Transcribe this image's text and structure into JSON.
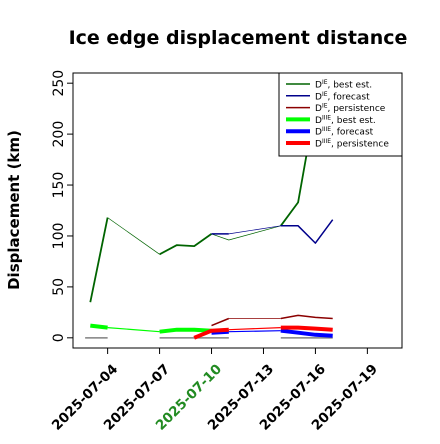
{
  "chart_data": {
    "type": "line",
    "title": "Ice edge displacement distance",
    "xlabel": "",
    "ylabel": "Displacement (km)",
    "xlim": [
      "2025-07-02",
      "2025-07-21"
    ],
    "ylim": [
      -10,
      260
    ],
    "yticks": [
      0,
      50,
      100,
      150,
      200,
      250
    ],
    "ytick_labels": [
      "0",
      "50",
      "100",
      "150",
      "200",
      "250"
    ],
    "xticks": [
      "2025-07-04",
      "2025-07-07",
      "2025-07-10",
      "2025-07-13",
      "2025-07-16",
      "2025-07-19"
    ],
    "xtick_labels": [
      "2025-07-04",
      "2025-07-07",
      "2025-07-10",
      "2025-07-13",
      "2025-07-16",
      "2025-07-19"
    ],
    "highlight_tick": "2025-07-10",
    "highlight_color": "#228b22",
    "grid": false,
    "legend_position": "top-right",
    "series": [
      {
        "name": "D^IE, best est.",
        "legend_main": "D",
        "legend_sup": "IE",
        "legend_rest": ", best est.",
        "color": "#006400",
        "legend_width": 1.5,
        "segments": [
          {
            "x": [
              "2025-07-03",
              "2025-07-04"
            ],
            "y": [
              35,
              118
            ],
            "width": 1.8
          },
          {
            "x": [
              "2025-07-04",
              "2025-07-07"
            ],
            "y": [
              118,
              82
            ],
            "width": 0.7
          },
          {
            "x": [
              "2025-07-07",
              "2025-07-08",
              "2025-07-09",
              "2025-07-10"
            ],
            "y": [
              82,
              91,
              90,
              102
            ],
            "width": 1.8
          },
          {
            "x": [
              "2025-07-10",
              "2025-07-11",
              "2025-07-14"
            ],
            "y": [
              102,
              96,
              110
            ],
            "width": 0.7
          },
          {
            "x": [
              "2025-07-14",
              "2025-07-15",
              "2025-07-15.7"
            ],
            "y": [
              110,
              133,
              200
            ],
            "width": 1.8
          }
        ]
      },
      {
        "name": "D^IE, forecast",
        "legend_main": "D",
        "legend_sup": "IE",
        "legend_rest": ", forecast",
        "color": "#00008b",
        "legend_width": 1.5,
        "segments": [
          {
            "x": [
              "2025-07-10",
              "2025-07-11"
            ],
            "y": [
              102,
              102
            ],
            "width": 1.5
          },
          {
            "x": [
              "2025-07-11",
              "2025-07-14"
            ],
            "y": [
              102,
              110
            ],
            "width": 0.7
          },
          {
            "x": [
              "2025-07-14",
              "2025-07-15",
              "2025-07-16",
              "2025-07-17"
            ],
            "y": [
              110,
              110,
              93,
              116
            ],
            "width": 1.5
          }
        ]
      },
      {
        "name": "D^IE, persistence",
        "legend_main": "D",
        "legend_sup": "IE",
        "legend_rest": ", persistence",
        "color": "#8b0000",
        "legend_width": 1.5,
        "segments": [
          {
            "x": [
              "2025-07-10",
              "2025-07-11"
            ],
            "y": [
              12,
              19
            ],
            "width": 1.5
          },
          {
            "x": [
              "2025-07-11",
              "2025-07-14"
            ],
            "y": [
              19,
              19
            ],
            "width": 0.7
          },
          {
            "x": [
              "2025-07-14",
              "2025-07-15",
              "2025-07-16",
              "2025-07-17"
            ],
            "y": [
              19,
              22,
              20,
              19
            ],
            "width": 1.5
          }
        ]
      },
      {
        "name": "D^IIIE, best est.",
        "legend_main": "D",
        "legend_sup": "IIIE",
        "legend_rest": ", best est.",
        "color": "#00ff00",
        "legend_width": 4,
        "segments": [
          {
            "x": [
              "2025-07-03",
              "2025-07-04"
            ],
            "y": [
              12,
              10
            ],
            "width": 4
          },
          {
            "x": [
              "2025-07-04",
              "2025-07-07"
            ],
            "y": [
              10,
              6
            ],
            "width": 1.2
          },
          {
            "x": [
              "2025-07-07",
              "2025-07-08",
              "2025-07-09",
              "2025-07-10"
            ],
            "y": [
              6,
              8,
              8,
              7
            ],
            "width": 4
          },
          {
            "x": [
              "2025-07-10",
              "2025-07-11"
            ],
            "y": [
              7,
              7
            ],
            "width": 1.2
          }
        ]
      },
      {
        "name": "D^IIIE, forecast",
        "legend_main": "D",
        "legend_sup": "IIIE",
        "legend_rest": ", forecast",
        "color": "#0000ff",
        "legend_width": 4,
        "segments": [
          {
            "x": [
              "2025-07-10",
              "2025-07-11"
            ],
            "y": [
              5,
              6
            ],
            "width": 4
          },
          {
            "x": [
              "2025-07-11",
              "2025-07-14"
            ],
            "y": [
              6,
              7
            ],
            "width": 1.2
          },
          {
            "x": [
              "2025-07-14",
              "2025-07-15",
              "2025-07-16",
              "2025-07-17"
            ],
            "y": [
              7,
              5,
              3,
              2
            ],
            "width": 4
          }
        ]
      },
      {
        "name": "D^IIIE, persistence",
        "legend_main": "D",
        "legend_sup": "IIIE",
        "legend_rest": ", persistence",
        "color": "#ff0000",
        "legend_width": 4,
        "segments": [
          {
            "x": [
              "2025-07-09",
              "2025-07-10",
              "2025-07-11"
            ],
            "y": [
              0,
              7,
              8
            ],
            "width": 4
          },
          {
            "x": [
              "2025-07-11",
              "2025-07-14"
            ],
            "y": [
              8,
              10
            ],
            "width": 1.2
          },
          {
            "x": [
              "2025-07-14",
              "2025-07-15",
              "2025-07-16",
              "2025-07-17"
            ],
            "y": [
              10,
              10,
              9,
              8
            ],
            "width": 4
          }
        ]
      }
    ],
    "baselines": [
      {
        "x": [
          "2025-07-02.7",
          "2025-07-04"
        ],
        "y": [
          0,
          0
        ],
        "color": "#808080"
      },
      {
        "x": [
          "2025-07-07",
          "2025-07-11"
        ],
        "y": [
          0,
          0
        ],
        "color": "#808080"
      },
      {
        "x": [
          "2025-07-14",
          "2025-07-17"
        ],
        "y": [
          0,
          0
        ],
        "color": "#808080"
      }
    ]
  }
}
